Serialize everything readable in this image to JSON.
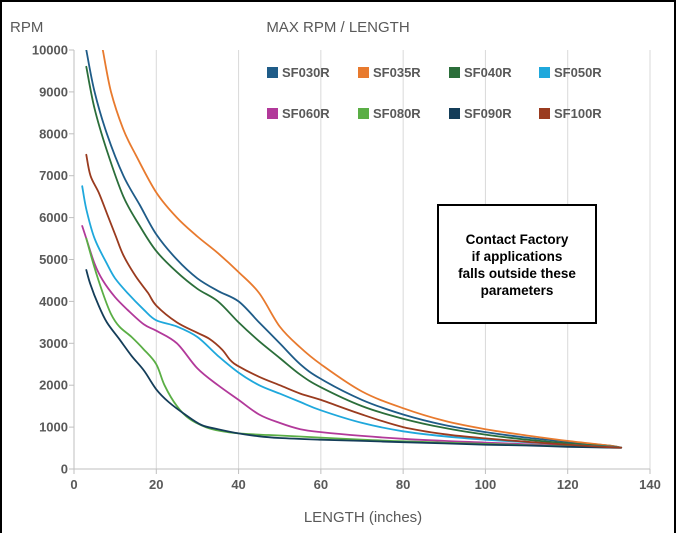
{
  "chart_data": {
    "type": "line",
    "title": "MAX RPM / LENGTH",
    "xlabel": "LENGTH (inches)",
    "ylabel": "RPM",
    "xlim": [
      0,
      140
    ],
    "ylim": [
      0,
      10000
    ],
    "x_ticks": [
      0,
      20,
      40,
      60,
      80,
      100,
      120,
      140
    ],
    "y_ticks": [
      0,
      1000,
      2000,
      3000,
      4000,
      5000,
      6000,
      7000,
      8000,
      9000,
      10000
    ],
    "grid": "vertical",
    "legend_position": "top-right",
    "series": [
      {
        "name": "SF030R",
        "color": "#1F5C88",
        "points": [
          [
            3,
            10000
          ],
          [
            5,
            9000
          ],
          [
            8,
            8000
          ],
          [
            12,
            7000
          ],
          [
            16,
            6300
          ],
          [
            20,
            5600
          ],
          [
            25,
            5000
          ],
          [
            30,
            4550
          ],
          [
            35,
            4250
          ],
          [
            40,
            4000
          ],
          [
            45,
            3500
          ],
          [
            50,
            3000
          ],
          [
            55,
            2500
          ],
          [
            60,
            2150
          ],
          [
            70,
            1650
          ],
          [
            80,
            1300
          ],
          [
            90,
            1050
          ],
          [
            100,
            880
          ],
          [
            110,
            750
          ],
          [
            120,
            650
          ],
          [
            130,
            560
          ],
          [
            133,
            510
          ]
        ]
      },
      {
        "name": "SF035R",
        "color": "#E87A2E",
        "points": [
          [
            7,
            10000
          ],
          [
            9,
            9000
          ],
          [
            12,
            8100
          ],
          [
            15,
            7500
          ],
          [
            20,
            6600
          ],
          [
            25,
            6000
          ],
          [
            30,
            5550
          ],
          [
            35,
            5150
          ],
          [
            40,
            4700
          ],
          [
            45,
            4200
          ],
          [
            50,
            3400
          ],
          [
            55,
            2900
          ],
          [
            60,
            2500
          ],
          [
            70,
            1850
          ],
          [
            80,
            1450
          ],
          [
            90,
            1150
          ],
          [
            100,
            950
          ],
          [
            110,
            800
          ],
          [
            120,
            670
          ],
          [
            130,
            560
          ],
          [
            133,
            510
          ]
        ]
      },
      {
        "name": "SF040R",
        "color": "#2B6E3A",
        "points": [
          [
            3,
            9600
          ],
          [
            5,
            8600
          ],
          [
            8,
            7600
          ],
          [
            12,
            6500
          ],
          [
            16,
            5800
          ],
          [
            20,
            5200
          ],
          [
            25,
            4700
          ],
          [
            30,
            4300
          ],
          [
            35,
            4000
          ],
          [
            40,
            3500
          ],
          [
            45,
            3050
          ],
          [
            50,
            2650
          ],
          [
            55,
            2250
          ],
          [
            60,
            1950
          ],
          [
            70,
            1500
          ],
          [
            80,
            1200
          ],
          [
            90,
            980
          ],
          [
            100,
            820
          ],
          [
            110,
            700
          ],
          [
            120,
            610
          ],
          [
            130,
            540
          ],
          [
            133,
            510
          ]
        ]
      },
      {
        "name": "SF050R",
        "color": "#1FA8DC",
        "points": [
          [
            2,
            6750
          ],
          [
            3,
            6200
          ],
          [
            5,
            5500
          ],
          [
            8,
            4900
          ],
          [
            10,
            4550
          ],
          [
            13,
            4200
          ],
          [
            17,
            3800
          ],
          [
            20,
            3550
          ],
          [
            25,
            3400
          ],
          [
            30,
            3150
          ],
          [
            35,
            2700
          ],
          [
            40,
            2300
          ],
          [
            45,
            2000
          ],
          [
            50,
            1800
          ],
          [
            55,
            1600
          ],
          [
            60,
            1400
          ],
          [
            70,
            1100
          ],
          [
            80,
            900
          ],
          [
            90,
            780
          ],
          [
            100,
            700
          ],
          [
            110,
            640
          ],
          [
            120,
            580
          ],
          [
            130,
            530
          ],
          [
            133,
            510
          ]
        ]
      },
      {
        "name": "SF060R",
        "color": "#B2399A",
        "points": [
          [
            2,
            5800
          ],
          [
            3,
            5500
          ],
          [
            5,
            4900
          ],
          [
            7,
            4500
          ],
          [
            10,
            4100
          ],
          [
            13,
            3800
          ],
          [
            17,
            3450
          ],
          [
            20,
            3300
          ],
          [
            25,
            3000
          ],
          [
            30,
            2400
          ],
          [
            35,
            2000
          ],
          [
            40,
            1650
          ],
          [
            45,
            1300
          ],
          [
            50,
            1100
          ],
          [
            55,
            950
          ],
          [
            60,
            880
          ],
          [
            70,
            790
          ],
          [
            80,
            720
          ],
          [
            90,
            670
          ],
          [
            100,
            630
          ],
          [
            110,
            590
          ],
          [
            120,
            550
          ],
          [
            130,
            520
          ],
          [
            133,
            510
          ]
        ]
      },
      {
        "name": "SF080R",
        "color": "#5AAE45",
        "points": [
          [
            3,
            5500
          ],
          [
            5,
            4800
          ],
          [
            7,
            4200
          ],
          [
            9,
            3700
          ],
          [
            11,
            3400
          ],
          [
            14,
            3150
          ],
          [
            17,
            2850
          ],
          [
            20,
            2500
          ],
          [
            22,
            2000
          ],
          [
            25,
            1500
          ],
          [
            28,
            1200
          ],
          [
            32,
            1000
          ],
          [
            36,
            900
          ],
          [
            40,
            850
          ],
          [
            45,
            820
          ],
          [
            50,
            800
          ],
          [
            60,
            750
          ],
          [
            70,
            700
          ],
          [
            80,
            660
          ],
          [
            90,
            630
          ],
          [
            100,
            600
          ],
          [
            110,
            570
          ],
          [
            120,
            540
          ],
          [
            130,
            515
          ],
          [
            133,
            510
          ]
        ]
      },
      {
        "name": "SF090R",
        "color": "#143D59",
        "points": [
          [
            3,
            4750
          ],
          [
            4,
            4400
          ],
          [
            6,
            3900
          ],
          [
            8,
            3500
          ],
          [
            11,
            3100
          ],
          [
            14,
            2700
          ],
          [
            17,
            2350
          ],
          [
            20,
            1900
          ],
          [
            23,
            1600
          ],
          [
            27,
            1300
          ],
          [
            31,
            1050
          ],
          [
            35,
            950
          ],
          [
            40,
            850
          ],
          [
            45,
            780
          ],
          [
            50,
            740
          ],
          [
            60,
            700
          ],
          [
            70,
            670
          ],
          [
            80,
            640
          ],
          [
            90,
            610
          ],
          [
            100,
            580
          ],
          [
            110,
            560
          ],
          [
            120,
            530
          ],
          [
            130,
            510
          ],
          [
            133,
            505
          ]
        ]
      },
      {
        "name": "SF100R",
        "color": "#9A3B1F",
        "points": [
          [
            3,
            7500
          ],
          [
            4,
            7000
          ],
          [
            6,
            6600
          ],
          [
            8,
            6100
          ],
          [
            10,
            5600
          ],
          [
            12,
            5100
          ],
          [
            15,
            4600
          ],
          [
            18,
            4200
          ],
          [
            20,
            3900
          ],
          [
            25,
            3500
          ],
          [
            30,
            3250
          ],
          [
            33,
            3100
          ],
          [
            36,
            2850
          ],
          [
            38,
            2600
          ],
          [
            40,
            2450
          ],
          [
            45,
            2200
          ],
          [
            50,
            2000
          ],
          [
            55,
            1800
          ],
          [
            60,
            1650
          ],
          [
            70,
            1300
          ],
          [
            80,
            1000
          ],
          [
            90,
            830
          ],
          [
            100,
            730
          ],
          [
            110,
            650
          ],
          [
            120,
            580
          ],
          [
            130,
            520
          ],
          [
            133,
            510
          ]
        ]
      }
    ],
    "annotation": "Contact Factory\nif applications\nfalls outside these\nparameters"
  }
}
